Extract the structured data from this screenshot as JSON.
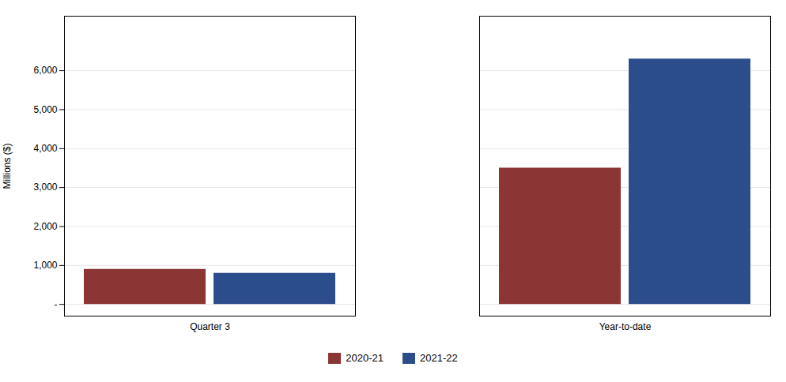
{
  "chart_data": {
    "type": "bar",
    "categories": [
      "Quarter 3",
      "Year-to-date"
    ],
    "series": [
      {
        "name": "2020-21",
        "color": "#8B3535",
        "values": [
          900,
          3500
        ]
      },
      {
        "name": "2021-22",
        "color": "#2B4D8C",
        "values": [
          800,
          6300
        ]
      }
    ],
    "ylabel": "Millions ($)",
    "ylim": [
      -300,
      7400
    ],
    "yticks": [
      {
        "value": 0,
        "label": "-"
      },
      {
        "value": 1000,
        "label": "1,000"
      },
      {
        "value": 2000,
        "label": "2,000"
      },
      {
        "value": 3000,
        "label": "3,000"
      },
      {
        "value": 4000,
        "label": "4,000"
      },
      {
        "value": 5000,
        "label": "5,000"
      },
      {
        "value": 6000,
        "label": "6,000"
      }
    ],
    "grid": true,
    "legend": "bottom"
  }
}
